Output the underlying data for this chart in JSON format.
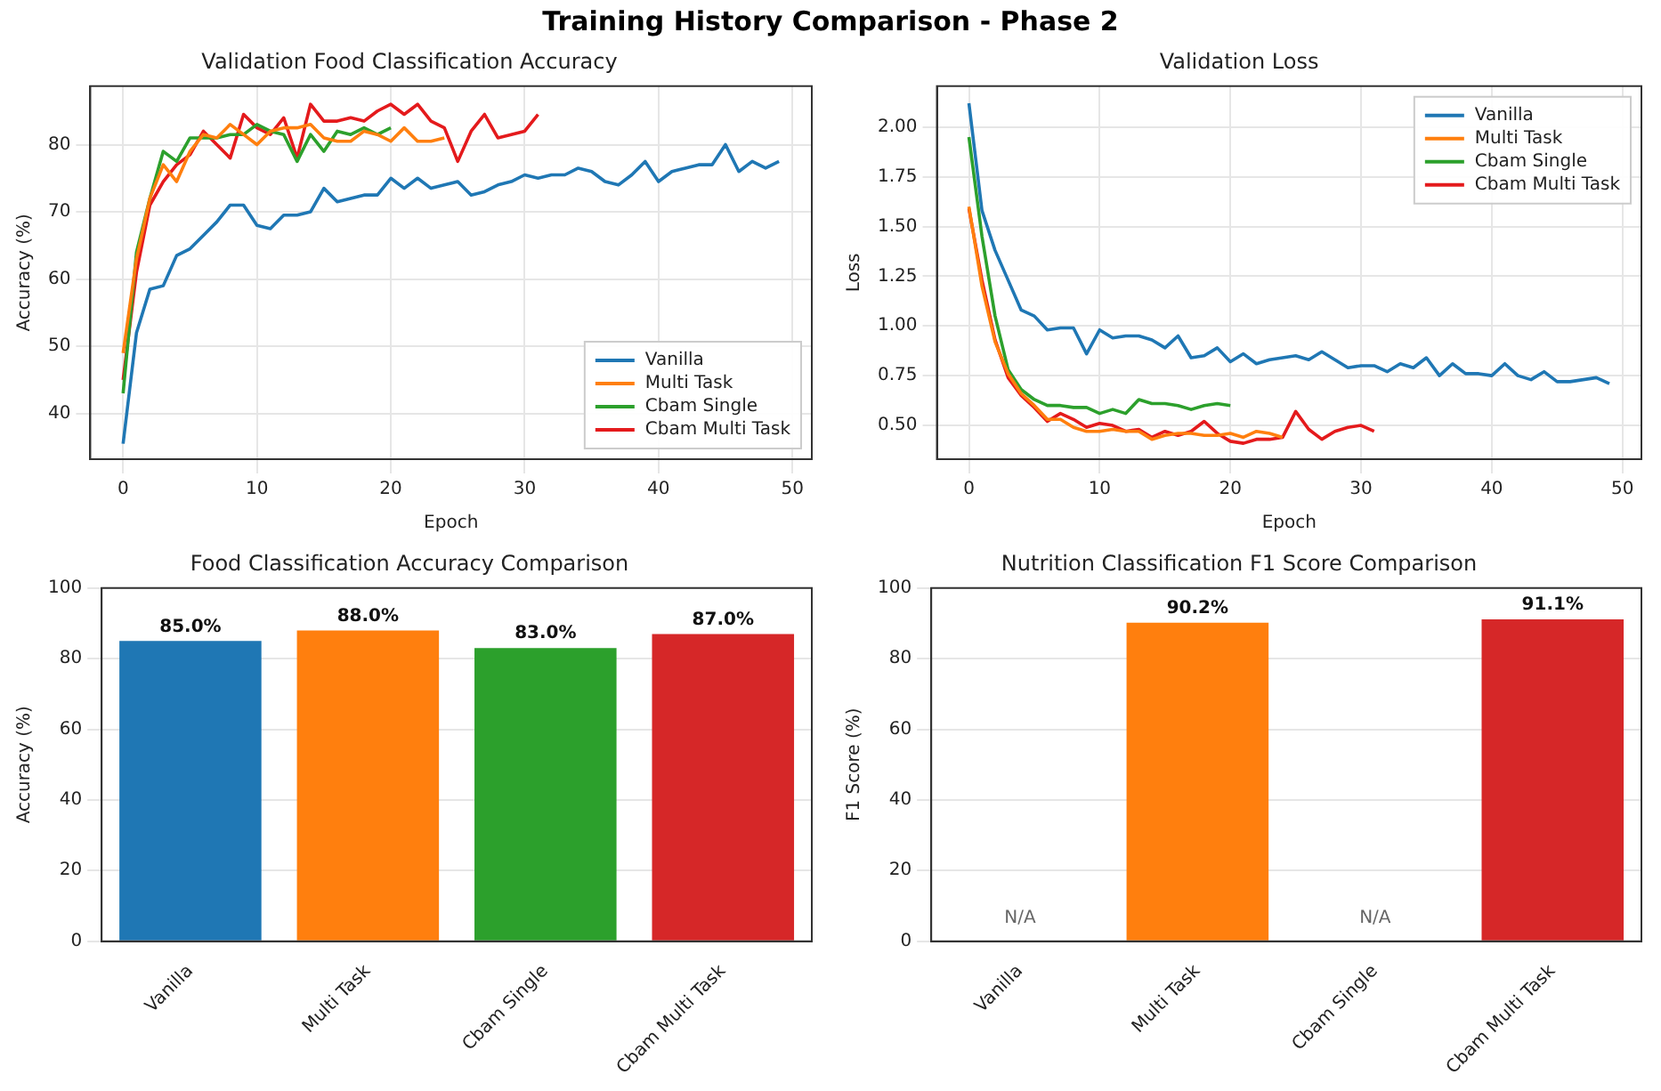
{
  "chart_data": [
    {
      "type": "line",
      "title": "Validation Food Classification Accuracy",
      "xlabel": "Epoch",
      "ylabel": "Accuracy (%)",
      "annotations": [
        "Training History Comparison - Phase 2"
      ],
      "xlim": [
        -2.45,
        51.45
      ],
      "xticks": [
        0,
        10,
        20,
        30,
        40,
        50
      ],
      "ylim": [
        33.2,
        88.7
      ],
      "yticks": [
        40,
        50,
        60,
        70,
        80
      ],
      "grid": true,
      "legend": "bottom right",
      "marker": "none",
      "line_style": "solid",
      "series": [
        {
          "name": "Vanilla",
          "color": "#1f77b4",
          "x": [
            0,
            1,
            2,
            3,
            4,
            5,
            6,
            7,
            8,
            9,
            10,
            11,
            12,
            13,
            14,
            15,
            16,
            17,
            18,
            19,
            20,
            21,
            22,
            23,
            24,
            25,
            26,
            27,
            28,
            29,
            30,
            31,
            32,
            33,
            34,
            35,
            36,
            37,
            38,
            39,
            40,
            41,
            42,
            43,
            44,
            45,
            46,
            47,
            48,
            49
          ],
          "values": [
            35.5,
            52,
            58.5,
            59,
            63.5,
            64.5,
            66.5,
            68.5,
            71,
            71,
            68,
            67.5,
            69.5,
            69.5,
            70,
            73.5,
            71.5,
            72,
            72.5,
            72.5,
            75,
            73.5,
            75,
            73.5,
            74,
            74.5,
            72.5,
            73,
            74,
            74.5,
            75.5,
            75,
            75.5,
            75.5,
            76.5,
            76,
            74.5,
            74,
            75.5,
            77.5,
            74.5,
            76,
            76.5,
            77,
            77,
            80,
            76,
            77.5,
            76.5,
            77.5
          ]
        },
        {
          "name": "Multi Task",
          "color": "#ff7f0e",
          "x": [
            0,
            1,
            2,
            3,
            4,
            5,
            6,
            7,
            8,
            9,
            10,
            11,
            12,
            13,
            14,
            15,
            16,
            17,
            18,
            19,
            20,
            21,
            22,
            23,
            24
          ],
          "values": [
            49,
            63,
            72,
            77,
            74.5,
            79,
            81.5,
            81,
            83,
            81.5,
            80,
            82,
            82.5,
            82.5,
            83,
            81,
            80.5,
            80.5,
            82,
            81.5,
            80.5,
            82.5,
            80.5,
            80.5,
            81
          ]
        },
        {
          "name": "Cbam Single",
          "color": "#2ca02c",
          "x": [
            0,
            1,
            2,
            3,
            4,
            5,
            6,
            7,
            8,
            9,
            10,
            11,
            12,
            13,
            14,
            15,
            16,
            17,
            18,
            19,
            20
          ],
          "values": [
            43,
            64,
            72,
            79,
            77.5,
            81,
            81,
            81,
            81.5,
            81.5,
            83,
            82,
            81.5,
            77.5,
            81.5,
            79,
            82,
            81.5,
            82.5,
            81.5,
            82.5
          ]
        },
        {
          "name": "Cbam Multi Task",
          "color": "#e41a1c",
          "x": [
            0,
            1,
            2,
            3,
            4,
            5,
            6,
            7,
            8,
            9,
            10,
            11,
            12,
            13,
            14,
            15,
            16,
            17,
            18,
            19,
            20,
            21,
            22,
            23,
            24,
            25,
            26,
            27,
            28,
            29,
            30,
            31
          ],
          "values": [
            45,
            61,
            71,
            74.5,
            77,
            78.5,
            82,
            80,
            78,
            84.5,
            82.5,
            81.5,
            84,
            78,
            86,
            83.5,
            83.5,
            84,
            83.5,
            85,
            86,
            84.5,
            86,
            83.5,
            82.5,
            77.5,
            82,
            84.5,
            81,
            81.5,
            82,
            84.5
          ]
        }
      ]
    },
    {
      "type": "line",
      "title": "Validation Loss",
      "xlabel": "Epoch",
      "ylabel": "Loss",
      "xlim": [
        -2.45,
        51.45
      ],
      "xticks": [
        0,
        10,
        20,
        30,
        40,
        50
      ],
      "ylim": [
        0.33,
        2.206
      ],
      "yticks": [
        {
          "value": 0.5,
          "label": "0.50"
        },
        {
          "value": 0.75,
          "label": "0.75"
        },
        {
          "value": 1,
          "label": "1.00"
        },
        {
          "value": 1.25,
          "label": "1.25"
        },
        {
          "value": 1.5,
          "label": "1.50"
        },
        {
          "value": 1.75,
          "label": "1.75"
        },
        {
          "value": 2,
          "label": "2.00"
        }
      ],
      "grid": true,
      "legend": "top right",
      "marker": "none",
      "line_style": "solid",
      "series": [
        {
          "name": "Vanilla",
          "color": "#1f77b4",
          "x": [
            0,
            1,
            2,
            3,
            4,
            5,
            6,
            7,
            8,
            9,
            10,
            11,
            12,
            13,
            14,
            15,
            16,
            17,
            18,
            19,
            20,
            21,
            22,
            23,
            24,
            25,
            26,
            27,
            28,
            29,
            30,
            31,
            32,
            33,
            34,
            35,
            36,
            37,
            38,
            39,
            40,
            41,
            42,
            43,
            44,
            45,
            46,
            47,
            48,
            49
          ],
          "values": [
            2.12,
            1.58,
            1.38,
            1.23,
            1.08,
            1.05,
            0.98,
            0.99,
            0.99,
            0.86,
            0.98,
            0.94,
            0.95,
            0.95,
            0.93,
            0.89,
            0.95,
            0.84,
            0.85,
            0.89,
            0.82,
            0.86,
            0.81,
            0.83,
            0.84,
            0.85,
            0.83,
            0.87,
            0.83,
            0.79,
            0.8,
            0.8,
            0.77,
            0.81,
            0.79,
            0.84,
            0.75,
            0.81,
            0.76,
            0.76,
            0.75,
            0.81,
            0.75,
            0.73,
            0.77,
            0.72,
            0.72,
            0.73,
            0.74,
            0.71
          ]
        },
        {
          "name": "Multi Task",
          "color": "#ff7f0e",
          "x": [
            0,
            1,
            2,
            3,
            4,
            5,
            6,
            7,
            8,
            9,
            10,
            11,
            12,
            13,
            14,
            15,
            16,
            17,
            18,
            19,
            20,
            21,
            22,
            23,
            24
          ],
          "values": [
            1.6,
            1.2,
            0.92,
            0.76,
            0.66,
            0.6,
            0.53,
            0.53,
            0.49,
            0.47,
            0.47,
            0.48,
            0.47,
            0.47,
            0.43,
            0.45,
            0.46,
            0.46,
            0.45,
            0.45,
            0.46,
            0.44,
            0.47,
            0.46,
            0.44
          ]
        },
        {
          "name": "Cbam Single",
          "color": "#2ca02c",
          "x": [
            0,
            1,
            2,
            3,
            4,
            5,
            6,
            7,
            8,
            9,
            10,
            11,
            12,
            13,
            14,
            15,
            16,
            17,
            18,
            19,
            20
          ],
          "values": [
            1.95,
            1.45,
            1.05,
            0.78,
            0.68,
            0.63,
            0.6,
            0.6,
            0.59,
            0.59,
            0.56,
            0.58,
            0.56,
            0.63,
            0.61,
            0.61,
            0.6,
            0.58,
            0.6,
            0.61,
            0.6
          ]
        },
        {
          "name": "Cbam Multi Task",
          "color": "#e41a1c",
          "x": [
            0,
            1,
            2,
            3,
            4,
            5,
            6,
            7,
            8,
            9,
            10,
            11,
            12,
            13,
            14,
            15,
            16,
            17,
            18,
            19,
            20,
            21,
            22,
            23,
            24,
            25,
            26,
            27,
            28,
            29,
            30,
            31
          ],
          "values": [
            1.59,
            1.23,
            0.93,
            0.74,
            0.65,
            0.59,
            0.52,
            0.56,
            0.53,
            0.49,
            0.51,
            0.5,
            0.47,
            0.48,
            0.44,
            0.47,
            0.45,
            0.47,
            0.52,
            0.46,
            0.42,
            0.41,
            0.43,
            0.43,
            0.44,
            0.57,
            0.48,
            0.43,
            0.47,
            0.49,
            0.5,
            0.47
          ]
        }
      ]
    },
    {
      "type": "bar",
      "title": "Food Classification Accuracy Comparison",
      "ylabel": "Accuracy (%)",
      "categories": [
        "Vanilla",
        "Multi Task",
        "Cbam Single",
        "Cbam Multi Task"
      ],
      "values": [
        85,
        88,
        83,
        87
      ],
      "colors": [
        "#1f77b4",
        "#ff7f0e",
        "#2ca02c",
        "#d62728"
      ],
      "value_labels": [
        "85.0%",
        "88.0%",
        "83.0%",
        "87.0%"
      ],
      "ylim": [
        0,
        100
      ],
      "yticks": [
        0,
        20,
        40,
        60,
        80,
        100
      ],
      "grid": "y"
    },
    {
      "type": "bar",
      "title": "Nutrition Classification F1 Score Comparison",
      "ylabel": "F1 Score (%)",
      "categories": [
        "Vanilla",
        "Multi Task",
        "Cbam Single",
        "Cbam Multi Task"
      ],
      "values": [
        null,
        90.2,
        null,
        91.1
      ],
      "colors": [
        "#1f77b4",
        "#ff7f0e",
        "#2ca02c",
        "#d62728"
      ],
      "value_labels": [
        "N/A",
        "90.2%",
        "N/A",
        "91.1%"
      ],
      "ylim": [
        0,
        100
      ],
      "yticks": [
        0,
        20,
        40,
        60,
        80,
        100
      ],
      "grid": "y"
    }
  ]
}
